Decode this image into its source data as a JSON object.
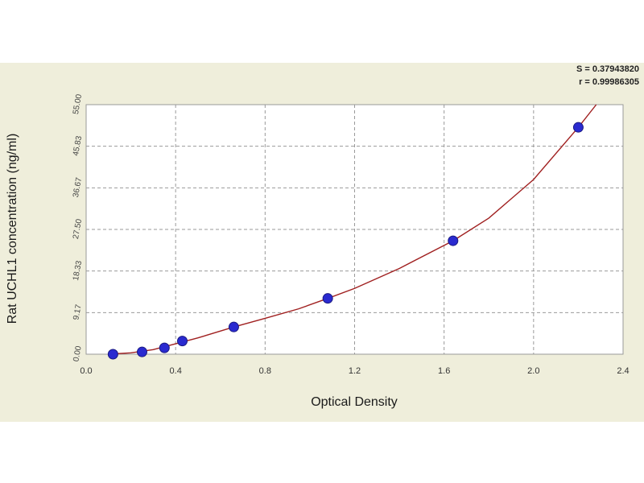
{
  "chart_data": {
    "type": "scatter",
    "xlabel": "Optical Density",
    "ylabel": "Rat UCHL1 concentration (ng/ml)",
    "xlim": [
      0.0,
      2.4
    ],
    "ylim": [
      0.0,
      55.0
    ],
    "x_ticks": [
      "0.0",
      "0.4",
      "0.8",
      "1.2",
      "1.6",
      "2.0",
      "2.4"
    ],
    "y_ticks": [
      "0.00",
      "9.17",
      "18.33",
      "27.50",
      "36.67",
      "45.83",
      "55.00"
    ],
    "grid": true,
    "fit_stats": [
      "S = 0.37943820",
      "r = 0.99986305"
    ],
    "colors": {
      "panel": "#efeedb",
      "plot_bg": "#ffffff",
      "curve": "#a02020",
      "marker": "#2a2ad0",
      "grid": "#9a9a9a"
    },
    "series": [
      {
        "points": [
          {
            "x": 0.12,
            "y": 0.0
          },
          {
            "x": 0.25,
            "y": 0.5
          },
          {
            "x": 0.35,
            "y": 1.4
          },
          {
            "x": 0.43,
            "y": 2.9
          },
          {
            "x": 0.66,
            "y": 6.0
          },
          {
            "x": 1.08,
            "y": 12.3
          },
          {
            "x": 1.64,
            "y": 25.0
          },
          {
            "x": 2.2,
            "y": 50.0
          }
        ]
      }
    ],
    "curve": {
      "points": [
        {
          "x": 0.1,
          "y": 0.0
        },
        {
          "x": 0.2,
          "y": 0.3
        },
        {
          "x": 0.3,
          "y": 1.0
        },
        {
          "x": 0.4,
          "y": 2.3
        },
        {
          "x": 0.5,
          "y": 3.6
        },
        {
          "x": 0.66,
          "y": 6.0
        },
        {
          "x": 0.8,
          "y": 7.9
        },
        {
          "x": 0.95,
          "y": 10.0
        },
        {
          "x": 1.08,
          "y": 12.3
        },
        {
          "x": 1.2,
          "y": 14.5
        },
        {
          "x": 1.4,
          "y": 18.9
        },
        {
          "x": 1.64,
          "y": 25.0
        },
        {
          "x": 1.8,
          "y": 30.0
        },
        {
          "x": 2.0,
          "y": 38.5
        },
        {
          "x": 2.2,
          "y": 50.0
        },
        {
          "x": 2.28,
          "y": 55.0
        }
      ]
    }
  }
}
